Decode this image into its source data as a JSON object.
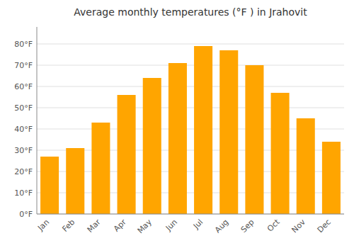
{
  "chart_data": {
    "type": "bar",
    "title": "Average monthly temperatures (°F ) in Jrahovit",
    "categories": [
      "Jan",
      "Feb",
      "Mar",
      "Apr",
      "May",
      "Jun",
      "Jul",
      "Aug",
      "Sep",
      "Oct",
      "Nov",
      "Dec"
    ],
    "values": [
      27,
      31,
      43,
      56,
      64,
      71,
      79,
      77,
      70,
      57,
      45,
      34
    ],
    "color": "#FFA500",
    "ylim": [
      0,
      88
    ],
    "yticks": [
      {
        "value": 0,
        "label": "0°F"
      },
      {
        "value": 10,
        "label": "10°F"
      },
      {
        "value": 20,
        "label": "20°F"
      },
      {
        "value": 30,
        "label": "30°F"
      },
      {
        "value": 40,
        "label": "40°F"
      },
      {
        "value": 50,
        "label": "50°F"
      },
      {
        "value": 60,
        "label": "60°F"
      },
      {
        "value": 70,
        "label": "70°F"
      },
      {
        "value": 80,
        "label": "80°F"
      }
    ],
    "grid": true
  }
}
